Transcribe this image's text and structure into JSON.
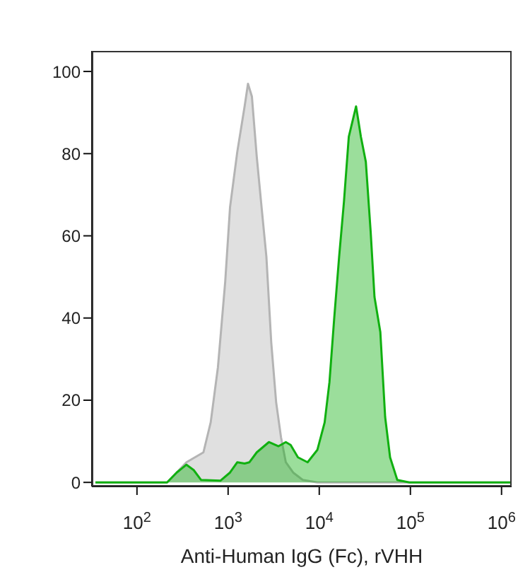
{
  "chart_data": {
    "type": "area",
    "xlabel": "Anti-Human IgG (Fc), rVHH",
    "log": "x",
    "grid": false,
    "legend": false,
    "xlim": [
      32,
      1290000
    ],
    "ylim": [
      -1,
      105
    ],
    "xticks": [
      {
        "value": 100,
        "label": "10$^{2}$"
      },
      {
        "value": 1000,
        "label": "10$^{3}$"
      },
      {
        "value": 10000,
        "label": "10$^{4}$"
      },
      {
        "value": 100000,
        "label": "10$^{5}$"
      },
      {
        "value": 1000000,
        "label": "10$^{6}$"
      }
    ],
    "yticks": [
      0,
      20,
      40,
      60,
      80,
      100
    ],
    "series": [
      {
        "color": "#b4b4b4",
        "x": [
          35,
          139,
          214,
          273,
          349,
          536,
          644,
          773,
          929,
          1050,
          1262,
          1517,
          1652,
          1824,
          2061,
          2328,
          2630,
          2972,
          3365,
          3802,
          4295,
          5164,
          6592,
          9528,
          12160,
          1250000
        ],
        "values": [
          0,
          0,
          0,
          2.4,
          4.9,
          7.3,
          14.6,
          28,
          48.8,
          67,
          80.5,
          91.5,
          97,
          93.9,
          79.3,
          67,
          54.9,
          34.1,
          19.5,
          11,
          4.9,
          2.4,
          0.6,
          0,
          0,
          0
        ]
      },
      {
        "color": "#10b010",
        "x": [
          35,
          148,
          214,
          273,
          349,
          419,
          504,
          822,
          1050,
          1262,
          1517,
          1714,
          2061,
          2800,
          3573,
          4295,
          4853,
          5834,
          7447,
          9528,
          11460,
          12940,
          14620,
          16520,
          18660,
          21090,
          25350,
          28640,
          32430,
          36640,
          40370,
          46770,
          52840,
          59840,
          71780,
          97500,
          1250000
        ],
        "values": [
          0,
          0,
          0,
          2.4,
          4.3,
          3,
          0.6,
          0.4,
          2.4,
          4.9,
          4.6,
          4.9,
          7.3,
          9.8,
          8.8,
          9.8,
          9.1,
          6.1,
          4.9,
          7.9,
          14.6,
          24.4,
          40.2,
          54.9,
          68.3,
          84.1,
          91.5,
          84.1,
          78,
          61,
          45.1,
          36.6,
          15.9,
          6.1,
          0.6,
          0,
          0
        ]
      }
    ]
  }
}
